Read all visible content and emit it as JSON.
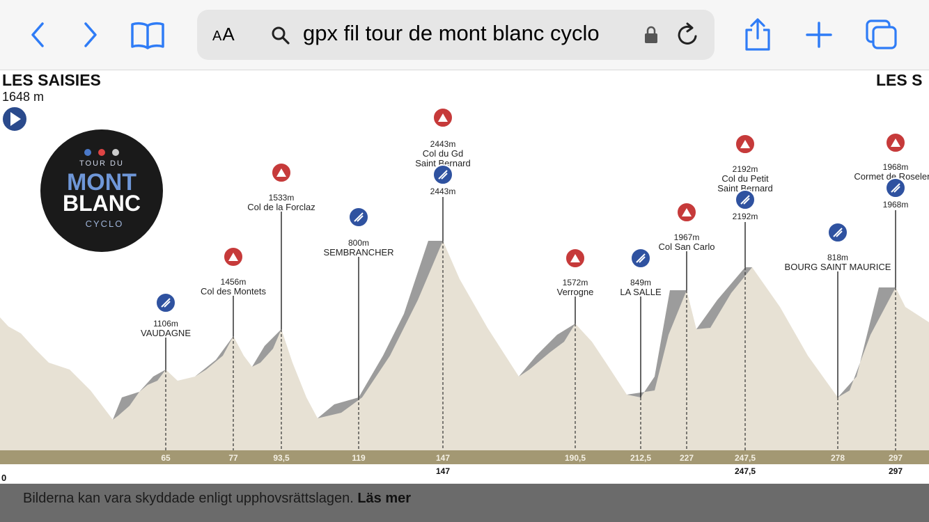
{
  "toolbar": {
    "text_size_label": "AA",
    "url_text": "gpx fil tour de mont blanc cyclo",
    "accent_color": "#2f7cf6",
    "icons": [
      "chevron-left-icon",
      "chevron-right-icon",
      "bookmarks-icon",
      "search-icon",
      "lock-icon",
      "reload-icon",
      "share-icon",
      "plus-icon",
      "tabs-icon"
    ]
  },
  "profile": {
    "start_name": "LES SAISIES",
    "start_elevation": "1648 m",
    "end_name": "LES S",
    "start_km": "0",
    "logo": {
      "line1": "TOUR DU",
      "line2": "MONT",
      "line3": "BLANC",
      "line4": "CYCLO"
    },
    "points": [
      {
        "type": "town",
        "elevation": "1106m",
        "name": [
          "VAUDAGNE"
        ],
        "km": "65"
      },
      {
        "type": "col",
        "elevation": "1456m",
        "name": [
          "Col des Montets"
        ],
        "km": "77"
      },
      {
        "type": "col",
        "elevation": "1533m",
        "name": [
          "Col de la Forclaz"
        ],
        "km": "93,5"
      },
      {
        "type": "town",
        "elevation": "800m",
        "name": [
          "SEMBRANCHER"
        ],
        "km": "119"
      },
      {
        "type": "col",
        "elevation": "2443m",
        "name": [
          "Col du Gd",
          "Saint Bernard"
        ],
        "town_elevation": "2443m",
        "km": "147",
        "km_total": "147"
      },
      {
        "type": "col",
        "elevation": "1572m",
        "name": [
          "Verrogne"
        ],
        "km": "190,5"
      },
      {
        "type": "town",
        "elevation": "849m",
        "name": [
          "LA SALLE"
        ],
        "km": "212,5"
      },
      {
        "type": "col",
        "elevation": "1967m",
        "name": [
          "Col San Carlo"
        ],
        "km": "227"
      },
      {
        "type": "col",
        "elevation": "2192m",
        "name": [
          "Col du Petit",
          "Saint Bernard"
        ],
        "town_elevation": "2192m",
        "km": "247,5",
        "km_total": "247,5"
      },
      {
        "type": "town",
        "elevation": "818m",
        "name": [
          "BOURG SAINT MAURICE"
        ],
        "km": "278"
      },
      {
        "type": "col",
        "elevation": "1968m",
        "name": [
          "Cormet de Roselend"
        ],
        "town_elevation": "1968m",
        "km": "297",
        "km_total": "297"
      }
    ]
  },
  "banner": {
    "text": "Bilderna kan vara skyddade enligt upphovsrättslagen.",
    "link": "Läs mer"
  }
}
